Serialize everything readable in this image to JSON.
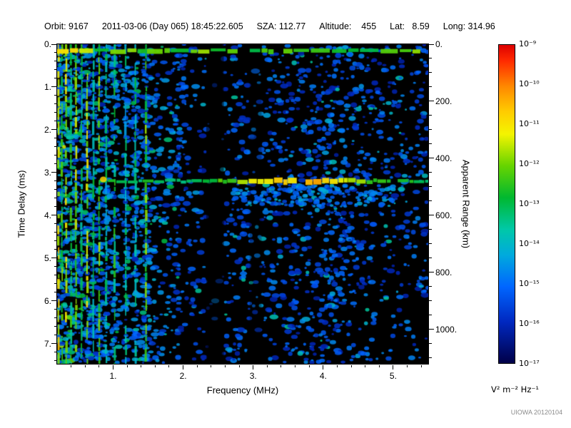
{
  "header": {
    "fields": [
      "Orbit: 9167",
      "2011-03-06 (Day 065) 18:45:22.605",
      "SZA: 112.77",
      "Altitude:    455",
      "Lat:   8.59",
      "Long: 314.96"
    ]
  },
  "chart_data": {
    "type": "heatmap",
    "description": "Radar sounder ionogram: echo spectral density versus frequency and time delay",
    "xlabel": "Frequency (MHz)",
    "ylabel_left": "Time Delay (ms)",
    "ylabel_right": "Apparent Range (km)",
    "x_range_mhz": [
      0.2,
      5.5
    ],
    "y_range_ms": [
      0,
      7.47
    ],
    "x_major_ticks": [
      1,
      2,
      3,
      4,
      5
    ],
    "x_tick_labels": [
      "1.",
      "2.",
      "3.",
      "4.",
      "5."
    ],
    "x_minor_step": 0.2,
    "y_major_ticks": [
      0,
      1,
      2,
      3,
      4,
      5,
      6,
      7
    ],
    "y_tick_labels": [
      "0.",
      "1.",
      "2.",
      "3.",
      "4.",
      "5.",
      "6.",
      "7."
    ],
    "y_minor_step": 0.2,
    "right_axis": {
      "ticks_km": [
        0,
        200,
        400,
        600,
        800,
        1000
      ],
      "tick_labels": [
        "0.",
        "200.",
        "400.",
        "600.",
        "800.",
        "1000."
      ],
      "km_per_ms": 150,
      "minor_step_km": 50
    },
    "colorbar": {
      "tick_labels": [
        "10⁻⁹",
        "10⁻¹⁰",
        "10⁻¹¹",
        "10⁻¹²",
        "10⁻¹³",
        "10⁻¹⁴",
        "10⁻¹⁵",
        "10⁻¹⁶",
        "10⁻¹⁷"
      ],
      "units": "V² m⁻² Hz⁻¹",
      "scale_top": "1e-9",
      "scale_bottom": "1e-17",
      "gradient": [
        {
          "pos": 0.0,
          "color": "#dd0000"
        },
        {
          "pos": 0.05,
          "color": "#ff2a00"
        },
        {
          "pos": 0.13,
          "color": "#ff8800"
        },
        {
          "pos": 0.21,
          "color": "#ffcc00"
        },
        {
          "pos": 0.28,
          "color": "#f4f400"
        },
        {
          "pos": 0.38,
          "color": "#66d400"
        },
        {
          "pos": 0.48,
          "color": "#00b830"
        },
        {
          "pos": 0.58,
          "color": "#00c8a8"
        },
        {
          "pos": 0.66,
          "color": "#00aadd"
        },
        {
          "pos": 0.76,
          "color": "#0066ff"
        },
        {
          "pos": 0.87,
          "color": "#0028c0"
        },
        {
          "pos": 1.0,
          "color": "#000048"
        }
      ]
    },
    "features": {
      "background": "#000000",
      "surface_artifact_band_ms": 0.15,
      "ionospheric_echo_trace_ms": 3.2,
      "echo_trace_freq_range_mhz": [
        0.8,
        5.5
      ],
      "echo_trace_bright_center_mhz": 3.6,
      "plasma_harmonic_lines_mhz": [
        0.22,
        0.27,
        0.33,
        0.4,
        0.47,
        0.55,
        0.63,
        0.72,
        0.8,
        0.9,
        1.02,
        1.18,
        1.32,
        1.47
      ],
      "plasma_harmonic_intensities": [
        0.72,
        0.55,
        0.68,
        0.5,
        0.62,
        0.48,
        0.66,
        0.45,
        0.58,
        0.42,
        0.5,
        0.4,
        0.45,
        0.58
      ],
      "quiet_band_mhz": [
        2.33,
        2.58
      ],
      "secondary_quiet_band_mhz": [
        2.95,
        3.12
      ],
      "noise_seed": 20120104
    }
  },
  "watermark": "UIOWA 20120104"
}
